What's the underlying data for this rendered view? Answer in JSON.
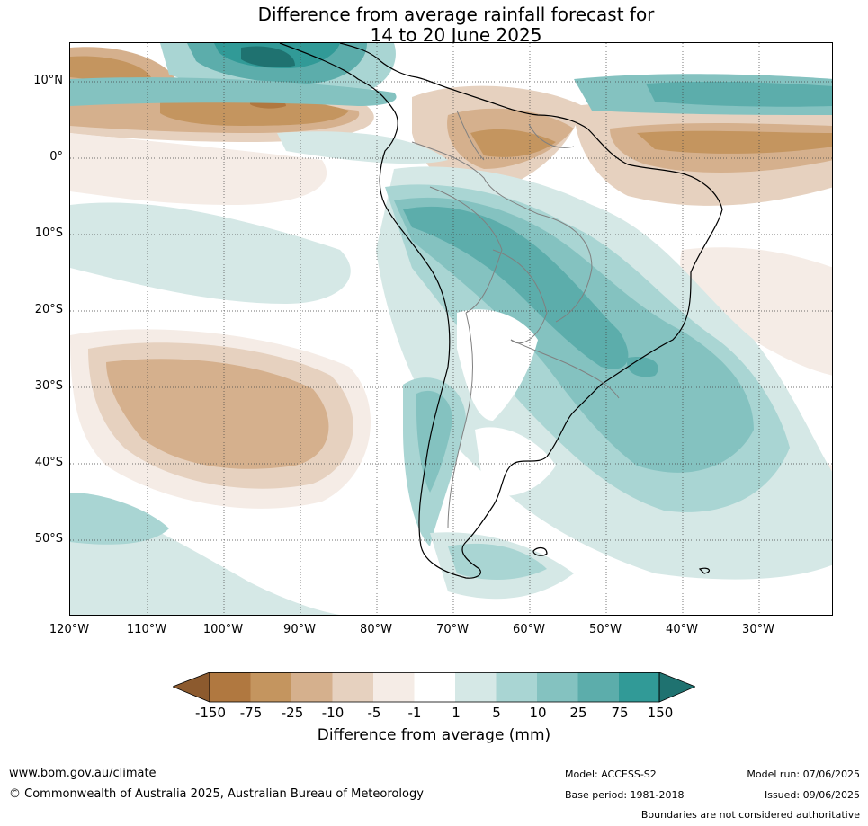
{
  "title": {
    "line1": "Difference from average rainfall forecast for",
    "line2": "14 to 20 June 2025"
  },
  "map": {
    "lat_labels": [
      "10°N",
      "0°",
      "10°S",
      "20°S",
      "30°S",
      "40°S",
      "50°S"
    ],
    "lon_labels": [
      "120°W",
      "110°W",
      "100°W",
      "90°W",
      "80°W",
      "70°W",
      "60°W",
      "50°W",
      "40°W",
      "30°W"
    ]
  },
  "colorbar": {
    "label": "Difference from average (mm)",
    "ticks": [
      "-150",
      "-75",
      "-25",
      "-10",
      "-5",
      "-1",
      "1",
      "5",
      "10",
      "25",
      "75",
      "150"
    ],
    "colors": [
      "#8c5a2e",
      "#b07840",
      "#c4955f",
      "#d5b08d",
      "#e6d1bf",
      "#f5ece6",
      "#ffffff",
      "#d5e8e6",
      "#a9d5d3",
      "#84c2c0",
      "#5cadab",
      "#319a97",
      "#1f7270"
    ]
  },
  "footer": {
    "website": "www.bom.gov.au/climate",
    "copyright": "© Commonwealth of Australia 2025, Australian Bureau of Meteorology",
    "model": "Model: ACCESS-S2",
    "base_period": "Base period: 1981-2018",
    "model_run": "Model run: 07/06/2025",
    "issued": "Issued: 09/06/2025",
    "disclaimer": "Boundaries are not considered authoritative"
  }
}
